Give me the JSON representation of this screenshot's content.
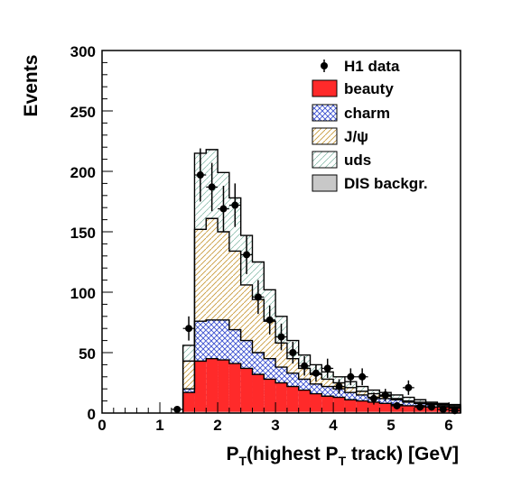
{
  "chart_data": {
    "type": "histogram",
    "xlabel": "P_T(highest P_T track) [GeV]",
    "xlabel_parts": {
      "a": "P",
      "b": "T",
      "c": "(highest P",
      "d": "T",
      "e": " track) [GeV]"
    },
    "ylabel": "Events",
    "xlim": [
      0,
      6.2
    ],
    "ylim": [
      0,
      300
    ],
    "xticks": [
      "0",
      "1",
      "2",
      "3",
      "4",
      "5",
      "6"
    ],
    "yticks": [
      "0",
      "50",
      "100",
      "150",
      "200",
      "250",
      "300"
    ],
    "grid": false,
    "legend_position": "top-right",
    "bin_edges": [
      1.4,
      1.6,
      1.8,
      2.0,
      2.2,
      2.4,
      2.6,
      2.8,
      3.0,
      3.2,
      3.4,
      3.6,
      3.8,
      4.0,
      4.2,
      4.4,
      4.6,
      4.8,
      5.0,
      5.2,
      5.4,
      5.6,
      5.8,
      6.0,
      6.2
    ],
    "stacked_cumulative": {
      "dis_backgr": [
        1,
        1,
        1,
        1,
        1,
        1,
        1,
        1,
        1,
        1,
        1,
        1,
        1,
        1,
        1,
        1,
        1,
        1,
        1,
        1,
        1,
        1,
        1,
        1
      ],
      "beauty": [
        17,
        43,
        45,
        44,
        41,
        37,
        32,
        28,
        25,
        22,
        19,
        16,
        14,
        13,
        11,
        10,
        9,
        8,
        7,
        6,
        6,
        5,
        5,
        4
      ],
      "charm": [
        20,
        76,
        77,
        77,
        69,
        60,
        50,
        45,
        38,
        33,
        28,
        24,
        22,
        20,
        17,
        15,
        13,
        12,
        11,
        9,
        8,
        7,
        6,
        5
      ],
      "jpsi": [
        43,
        152,
        161,
        150,
        134,
        106,
        94,
        76,
        58,
        45,
        37,
        32,
        28,
        25,
        21,
        18,
        16,
        14,
        12,
        10,
        9,
        8,
        7,
        6
      ],
      "uds": [
        56,
        215,
        218,
        199,
        178,
        147,
        125,
        102,
        80,
        60,
        48,
        40,
        34,
        30,
        26,
        22,
        19,
        17,
        15,
        13,
        11,
        9,
        8,
        7
      ]
    },
    "data_points": [
      {
        "x": 1.3,
        "y": 3,
        "err": 1
      },
      {
        "x": 1.5,
        "y": 70,
        "err": 10
      },
      {
        "x": 1.7,
        "y": 197,
        "err": 22
      },
      {
        "x": 1.9,
        "y": 187,
        "err": 20
      },
      {
        "x": 2.1,
        "y": 169,
        "err": 19
      },
      {
        "x": 2.3,
        "y": 172,
        "err": 18
      },
      {
        "x": 2.5,
        "y": 131,
        "err": 16
      },
      {
        "x": 2.7,
        "y": 96,
        "err": 14
      },
      {
        "x": 2.9,
        "y": 77,
        "err": 12
      },
      {
        "x": 3.1,
        "y": 63,
        "err": 11
      },
      {
        "x": 3.3,
        "y": 50,
        "err": 9
      },
      {
        "x": 3.5,
        "y": 39,
        "err": 8
      },
      {
        "x": 3.7,
        "y": 33,
        "err": 7
      },
      {
        "x": 3.9,
        "y": 37,
        "err": 8
      },
      {
        "x": 4.1,
        "y": 22,
        "err": 6
      },
      {
        "x": 4.3,
        "y": 30,
        "err": 7
      },
      {
        "x": 4.5,
        "y": 30,
        "err": 7
      },
      {
        "x": 4.7,
        "y": 12,
        "err": 5
      },
      {
        "x": 4.9,
        "y": 15,
        "err": 5
      },
      {
        "x": 5.1,
        "y": 6,
        "err": 3
      },
      {
        "x": 5.3,
        "y": 21,
        "err": 6
      },
      {
        "x": 5.5,
        "y": 5,
        "err": 3
      },
      {
        "x": 5.7,
        "y": 5,
        "err": 3
      },
      {
        "x": 5.9,
        "y": 3,
        "err": 2
      },
      {
        "x": 6.1,
        "y": 2,
        "err": 2
      }
    ],
    "legend": [
      {
        "key": "data",
        "label": "H1 data"
      },
      {
        "key": "beauty",
        "label": "beauty"
      },
      {
        "key": "charm",
        "label": "charm"
      },
      {
        "key": "jpsi",
        "label": "J/ψ"
      },
      {
        "key": "uds",
        "label": "uds"
      },
      {
        "key": "dis",
        "label": "DIS backgr."
      }
    ],
    "colors": {
      "beauty": "#ff2a2a",
      "charm_hatch": "#3a4fd0",
      "jpsi_hatch": "#c89a3a",
      "uds_hatch": "#7ab3a0",
      "dis": "#c8c8c8",
      "data": "#000000"
    }
  }
}
